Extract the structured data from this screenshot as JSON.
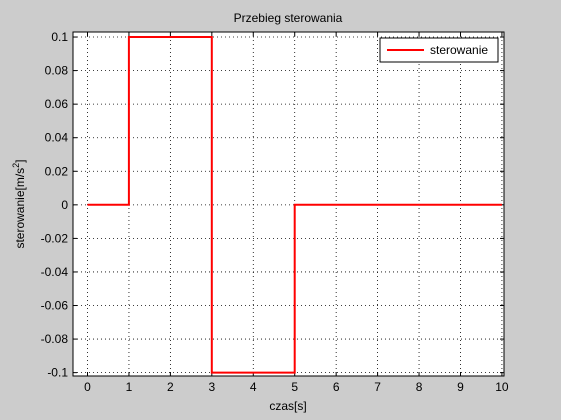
{
  "chart_data": {
    "type": "line",
    "title": "Przebieg sterowania",
    "xlabel": "czas[s]",
    "ylabel": "sterowanie[m/s",
    "ylabel_superscript": "2",
    "ylabel_suffix": "]",
    "xlim": [
      -0.35,
      10.05
    ],
    "ylim": [
      -0.102,
      0.103
    ],
    "xticks": [
      0,
      1,
      2,
      3,
      4,
      5,
      6,
      7,
      8,
      9,
      10
    ],
    "xtick_labels": [
      "0",
      "1",
      "2",
      "3",
      "4",
      "5",
      "6",
      "7",
      "8",
      "9",
      "10"
    ],
    "yticks": [
      -0.1,
      -0.08,
      -0.06,
      -0.04,
      -0.02,
      0,
      0.02,
      0.04,
      0.06,
      0.08,
      0.1
    ],
    "ytick_labels": [
      "-0.1",
      "-0.08",
      "-0.06",
      "-0.04",
      "-0.02",
      "0",
      "0.02",
      "0.04",
      "0.06",
      "0.08",
      "0.1"
    ],
    "grid": true,
    "legend_position": "top-right",
    "series": [
      {
        "name": "sterowanie",
        "color": "#ff0000",
        "x": [
          0,
          1,
          1,
          1,
          1,
          3,
          3,
          3,
          3,
          5,
          5,
          10
        ],
        "y": [
          0,
          0,
          0.05,
          0.05,
          0.1,
          0.1,
          0.0,
          0.0,
          -0.1,
          -0.1,
          0,
          0
        ]
      }
    ]
  }
}
